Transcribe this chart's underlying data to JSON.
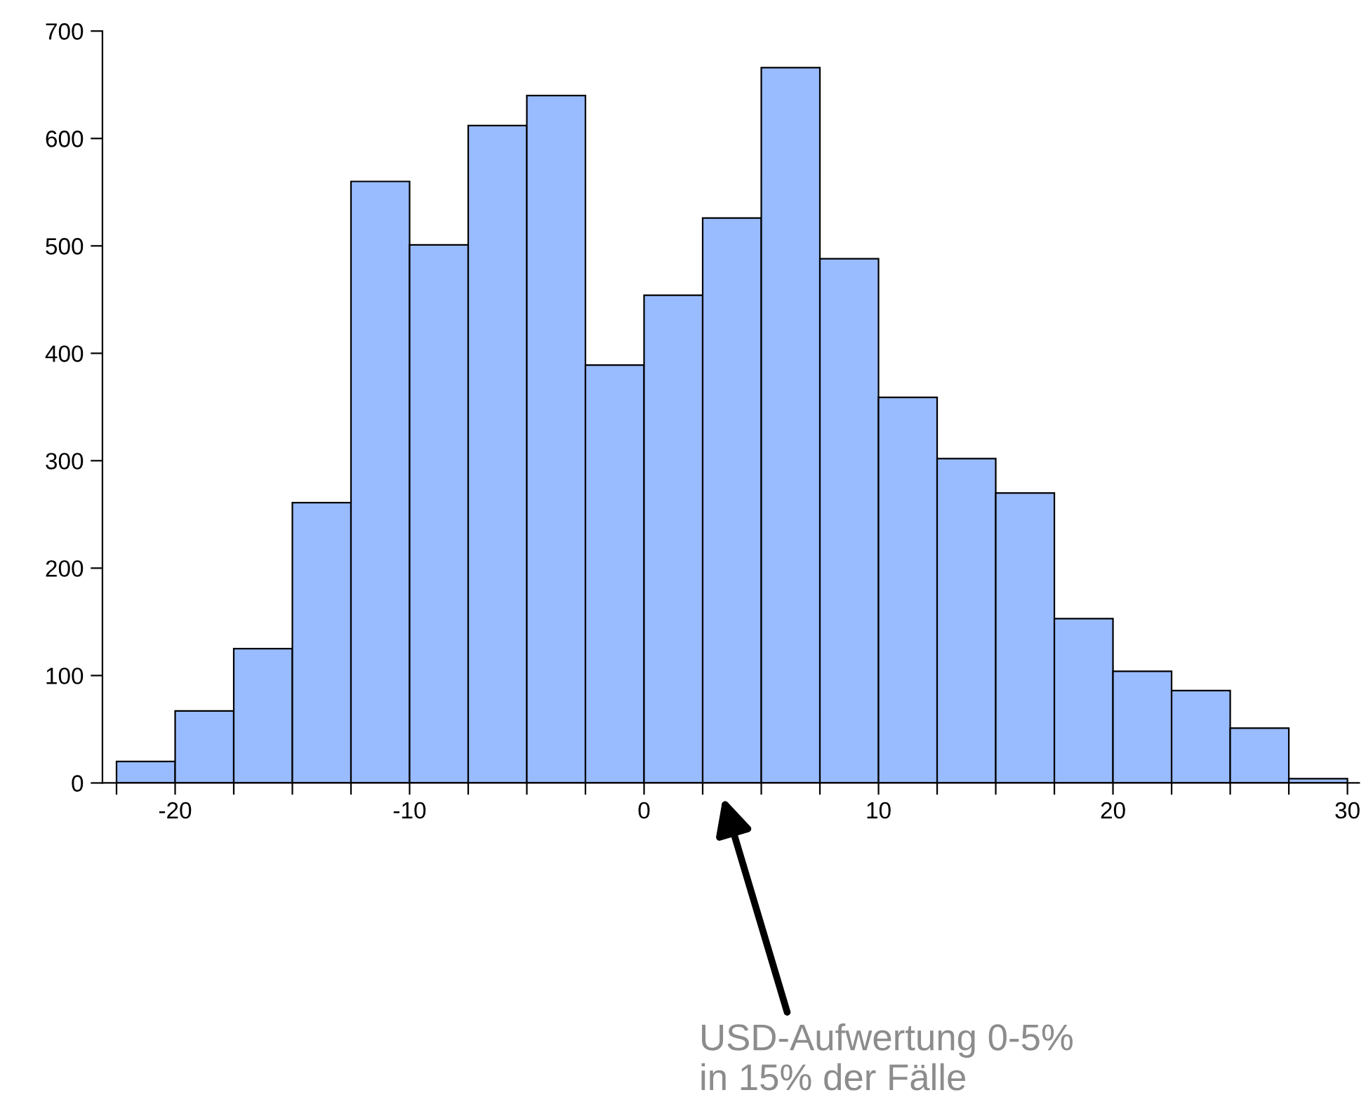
{
  "chart_data": {
    "type": "histogram",
    "bins": [
      -22.5,
      -20,
      -17.5,
      -15,
      -12.5,
      -10,
      -7.5,
      -5,
      -2.5,
      0,
      2.5,
      5,
      7.5,
      10,
      12.5,
      15,
      17.5,
      20,
      22.5,
      25,
      27.5,
      30
    ],
    "values": [
      20,
      67,
      125,
      261,
      560,
      501,
      612,
      640,
      389,
      454,
      526,
      666,
      488,
      359,
      302,
      270,
      153,
      104,
      86,
      51,
      4
    ],
    "color": "#99bbff",
    "xlim": [
      -23.1,
      30.5
    ],
    "xticks": [
      {
        "value": -22.5,
        "label": null
      },
      -20,
      {
        "value": -17.5,
        "label": null
      },
      {
        "value": -15,
        "label": null
      },
      {
        "value": -12.5,
        "label": null
      },
      -10,
      {
        "value": -7.5,
        "label": null
      },
      {
        "value": -5,
        "label": null
      },
      {
        "value": -2.5,
        "label": null
      },
      0,
      {
        "value": 2.5,
        "label": null
      },
      {
        "value": 5,
        "label": null
      },
      {
        "value": 7.5,
        "label": null
      },
      10,
      {
        "value": 12.5,
        "label": null
      },
      {
        "value": 15,
        "label": null
      },
      {
        "value": 17.5,
        "label": null
      },
      20,
      {
        "value": 22.5,
        "label": null
      },
      {
        "value": 25,
        "label": null
      },
      {
        "value": 27.5,
        "label": null
      },
      30
    ],
    "ylim": [
      0,
      700
    ],
    "yticks": [
      0,
      100,
      200,
      300,
      400,
      500,
      600,
      700
    ],
    "grid": false,
    "annotations": [
      "USD-Aufwertung 0-5%\nin 15% der Fälle"
    ]
  }
}
